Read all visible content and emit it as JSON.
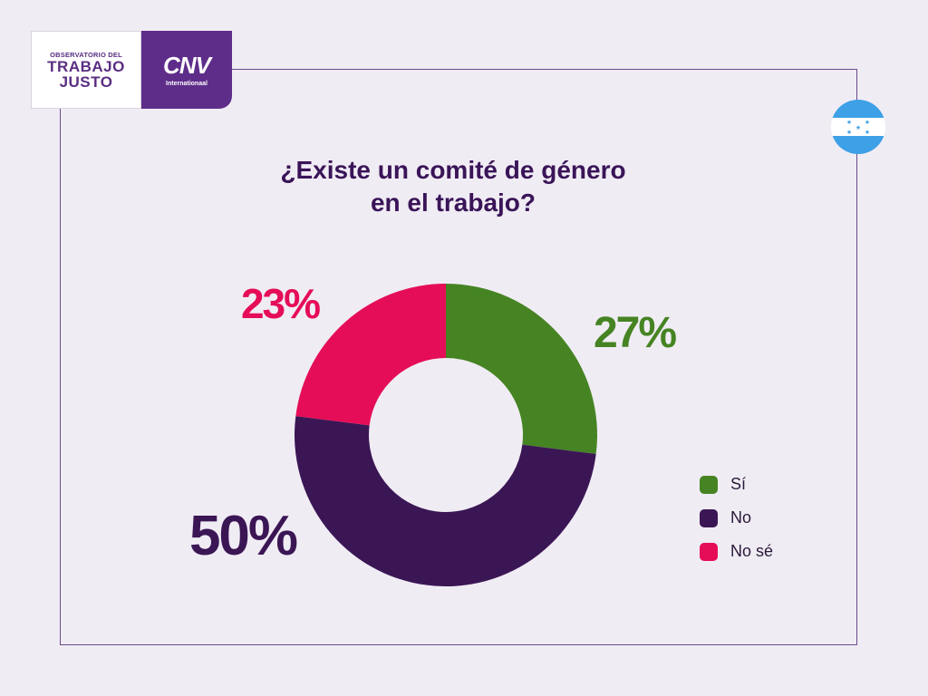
{
  "logo": {
    "left_small": "OBSERVATORIO DEL",
    "left_line1": "TRABAJO",
    "left_line2": "JUSTO",
    "right_mark": "CNV",
    "right_sub": "Internationaal"
  },
  "flag_icon": "honduras-flag-icon",
  "chart_data": {
    "type": "pie",
    "style": "donut",
    "title": [
      "¿Existe un comité de género",
      "en el trabajo?"
    ],
    "categories": [
      "Sí",
      "No",
      "No sé"
    ],
    "values": [
      27,
      50,
      23
    ],
    "value_labels": [
      "27%",
      "50%",
      "23%"
    ],
    "colors": [
      "#468423",
      "#3b1655",
      "#e50d57"
    ],
    "legend_placement": "right"
  }
}
